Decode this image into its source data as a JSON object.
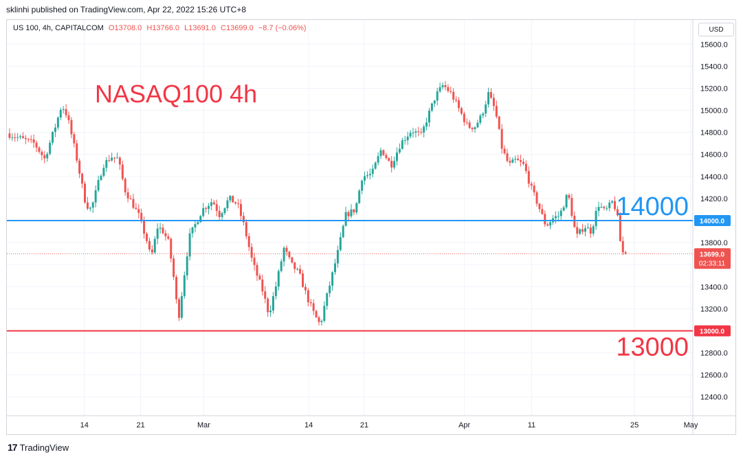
{
  "header": {
    "publisher_line": "sklinhi published on TradingView.com, Apr 22, 2022 15:26 UTC+8"
  },
  "legend": {
    "symbol": "US 100, 4h, CAPITALCOM",
    "open": "O13708.0",
    "high": "H13766.0",
    "low": "L13691.0",
    "close": "C13699.0",
    "change": "−8.7 (−0.06%)"
  },
  "currency_button": "USD",
  "footer": {
    "brand": "TradingView",
    "logo": "17"
  },
  "colors": {
    "up": "#26a69a",
    "down": "#ef5350",
    "line_14000": "#2196f3",
    "line_13000": "#f23645",
    "title": "#f23645"
  },
  "chart_data": {
    "type": "candlestick",
    "title": "NASAQ100 4h",
    "y_ticks": [
      "15600.0",
      "15400.0",
      "15200.0",
      "15000.0",
      "14800.0",
      "14600.0",
      "14400.0",
      "14200.0",
      "14000.0",
      "13800.0",
      "13600.0",
      "13400.0",
      "13200.0",
      "13000.0",
      "12800.0",
      "12600.0",
      "12400.0"
    ],
    "y_range": [
      12230,
      15820
    ],
    "x_ticks": [
      {
        "label": "14",
        "pos": 0.113
      },
      {
        "label": "21",
        "pos": 0.195
      },
      {
        "label": "Mar",
        "pos": 0.287
      },
      {
        "label": "14",
        "pos": 0.44
      },
      {
        "label": "21",
        "pos": 0.521
      },
      {
        "label": "Apr",
        "pos": 0.667
      },
      {
        "label": "11",
        "pos": 0.765
      },
      {
        "label": "25",
        "pos": 0.915
      },
      {
        "label": "May",
        "pos": 0.997
      }
    ],
    "horizontal_lines": [
      {
        "value": 14000,
        "label": "14000.0",
        "annotation": "14000"
      },
      {
        "value": 13000,
        "label": "13000.0",
        "annotation": "13000"
      }
    ],
    "last_price": {
      "value": 13699.0,
      "label": "13699.0",
      "countdown": "02:33:11"
    },
    "path": [
      [
        0.0,
        14790
      ],
      [
        0.04,
        14700
      ],
      [
        0.055,
        14560
      ],
      [
        0.072,
        14880
      ],
      [
        0.08,
        15050
      ],
      [
        0.088,
        14950
      ],
      [
        0.1,
        14620
      ],
      [
        0.115,
        14150
      ],
      [
        0.123,
        14100
      ],
      [
        0.14,
        14500
      ],
      [
        0.152,
        14580
      ],
      [
        0.162,
        14560
      ],
      [
        0.172,
        14280
      ],
      [
        0.192,
        14050
      ],
      [
        0.205,
        13800
      ],
      [
        0.21,
        13650
      ],
      [
        0.22,
        13950
      ],
      [
        0.228,
        13900
      ],
      [
        0.236,
        13800
      ],
      [
        0.244,
        13450
      ],
      [
        0.25,
        13100
      ],
      [
        0.258,
        13480
      ],
      [
        0.266,
        13850
      ],
      [
        0.285,
        14100
      ],
      [
        0.3,
        14180
      ],
      [
        0.31,
        14050
      ],
      [
        0.324,
        14200
      ],
      [
        0.336,
        14150
      ],
      [
        0.346,
        13950
      ],
      [
        0.357,
        13650
      ],
      [
        0.362,
        13550
      ],
      [
        0.372,
        13380
      ],
      [
        0.382,
        13150
      ],
      [
        0.392,
        13400
      ],
      [
        0.404,
        13750
      ],
      [
        0.415,
        13600
      ],
      [
        0.426,
        13520
      ],
      [
        0.438,
        13300
      ],
      [
        0.448,
        13150
      ],
      [
        0.457,
        13050
      ],
      [
        0.462,
        13200
      ],
      [
        0.472,
        13450
      ],
      [
        0.482,
        13700
      ],
      [
        0.494,
        14050
      ],
      [
        0.508,
        14100
      ],
      [
        0.518,
        14400
      ],
      [
        0.532,
        14420
      ],
      [
        0.546,
        14650
      ],
      [
        0.56,
        14500
      ],
      [
        0.574,
        14700
      ],
      [
        0.59,
        14820
      ],
      [
        0.604,
        14770
      ],
      [
        0.614,
        14950
      ],
      [
        0.625,
        15130
      ],
      [
        0.636,
        15230
      ],
      [
        0.648,
        15150
      ],
      [
        0.66,
        15000
      ],
      [
        0.672,
        14850
      ],
      [
        0.682,
        14850
      ],
      [
        0.692,
        14950
      ],
      [
        0.702,
        15150
      ],
      [
        0.712,
        15000
      ],
      [
        0.722,
        14650
      ],
      [
        0.732,
        14500
      ],
      [
        0.742,
        14550
      ],
      [
        0.754,
        14500
      ],
      [
        0.764,
        14300
      ],
      [
        0.774,
        14150
      ],
      [
        0.786,
        13950
      ],
      [
        0.796,
        14020
      ],
      [
        0.806,
        14050
      ],
      [
        0.818,
        14250
      ],
      [
        0.83,
        13850
      ],
      [
        0.842,
        13950
      ],
      [
        0.852,
        13900
      ],
      [
        0.862,
        14150
      ],
      [
        0.872,
        14080
      ],
      [
        0.884,
        14180
      ],
      [
        0.89,
        14030
      ],
      [
        0.896,
        13720
      ],
      [
        0.902,
        13690
      ]
    ]
  }
}
